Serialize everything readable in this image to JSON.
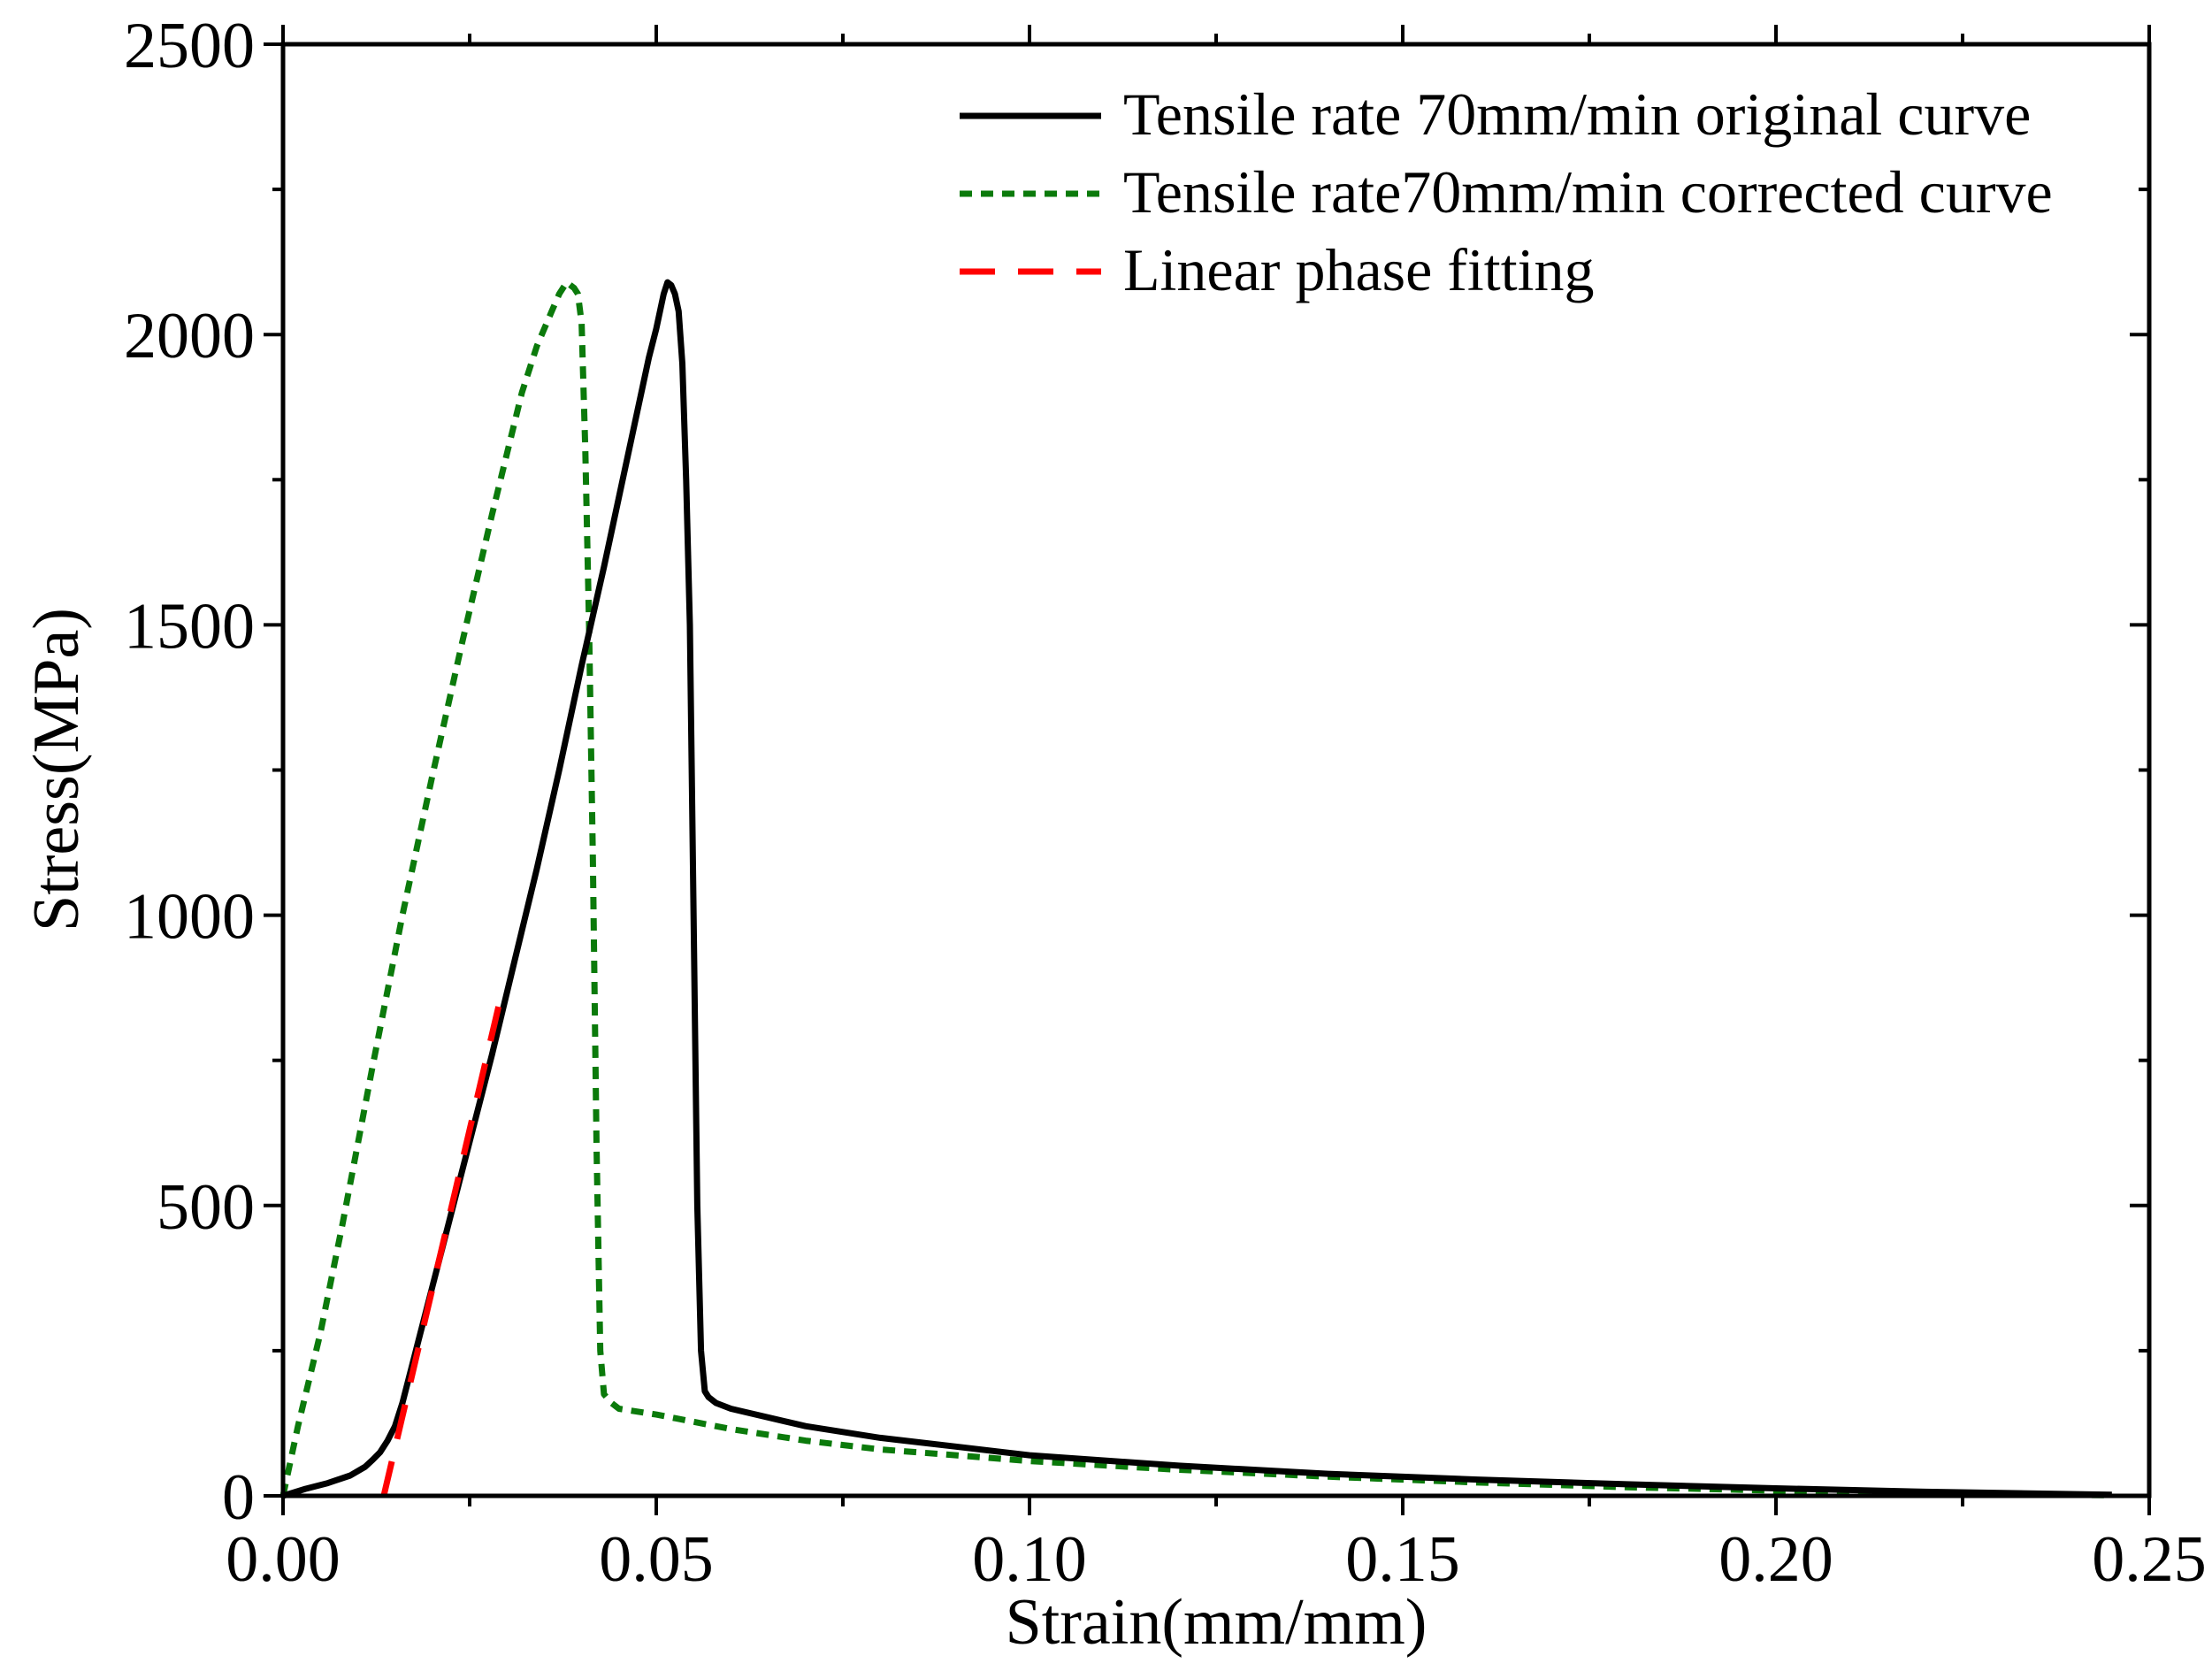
{
  "chart_data": {
    "type": "line",
    "xlabel": "Strain(mm/mm)",
    "ylabel": "Stress(MPa)",
    "xlim": [
      0,
      0.25
    ],
    "ylim": [
      0,
      2500
    ],
    "xticks": [
      0.0,
      0.05,
      0.1,
      0.15,
      0.2,
      0.25
    ],
    "xtick_labels": [
      "0.00",
      "0.05",
      "0.10",
      "0.15",
      "0.20",
      "0.25"
    ],
    "yticks": [
      0,
      500,
      1000,
      1500,
      2000,
      2500
    ],
    "ytick_labels": [
      "0",
      "500",
      "1000",
      "1500",
      "2000",
      "2500"
    ],
    "legend_position": "top-right",
    "series": [
      {
        "name": "Tensile rate 70mm/min original curve",
        "color": "#000000",
        "style": "solid",
        "x": [
          0.0,
          0.003,
          0.006,
          0.009,
          0.011,
          0.012,
          0.013,
          0.014,
          0.015,
          0.016,
          0.018,
          0.02,
          0.022,
          0.025,
          0.028,
          0.031,
          0.034,
          0.037,
          0.04,
          0.043,
          0.045,
          0.047,
          0.049,
          0.05,
          0.051,
          0.0515,
          0.052,
          0.0525,
          0.053,
          0.0535,
          0.054,
          0.0545,
          0.055,
          0.0555,
          0.056,
          0.0565,
          0.057,
          0.058,
          0.06,
          0.07,
          0.08,
          0.09,
          0.1,
          0.12,
          0.14,
          0.16,
          0.18,
          0.2,
          0.22,
          0.245
        ],
        "y": [
          0,
          12,
          22,
          35,
          50,
          62,
          75,
          95,
          120,
          160,
          260,
          360,
          460,
          610,
          760,
          920,
          1080,
          1250,
          1430,
          1600,
          1720,
          1840,
          1960,
          2010,
          2070,
          2090,
          2085,
          2070,
          2040,
          1950,
          1750,
          1500,
          1000,
          500,
          250,
          180,
          170,
          160,
          150,
          120,
          100,
          85,
          70,
          52,
          38,
          28,
          20,
          13,
          7,
          2
        ]
      },
      {
        "name": "Tensile rate70mm/min corrected curve",
        "color": "#0b7a0b",
        "style": "dotted",
        "x": [
          0.0,
          0.002,
          0.005,
          0.008,
          0.012,
          0.016,
          0.02,
          0.024,
          0.028,
          0.032,
          0.034,
          0.036,
          0.037,
          0.038,
          0.039,
          0.0395,
          0.04,
          0.0405,
          0.041,
          0.0415,
          0.042,
          0.0425,
          0.043,
          0.044,
          0.045,
          0.05,
          0.06,
          0.07,
          0.08,
          0.1,
          0.12,
          0.14,
          0.16,
          0.18,
          0.2,
          0.22,
          0.245
        ],
        "y": [
          0,
          120,
          280,
          470,
          740,
          1000,
          1240,
          1470,
          1690,
          1900,
          1980,
          2040,
          2070,
          2090,
          2080,
          2070,
          2020,
          1800,
          1500,
          1100,
          600,
          250,
          175,
          160,
          150,
          140,
          115,
          95,
          80,
          60,
          45,
          33,
          23,
          15,
          9,
          4,
          1
        ]
      },
      {
        "name": "Linear phase fitting",
        "color": "#ff0000",
        "style": "dashed",
        "x": [
          0.0135,
          0.029
        ],
        "y": [
          0,
          850
        ]
      }
    ]
  }
}
